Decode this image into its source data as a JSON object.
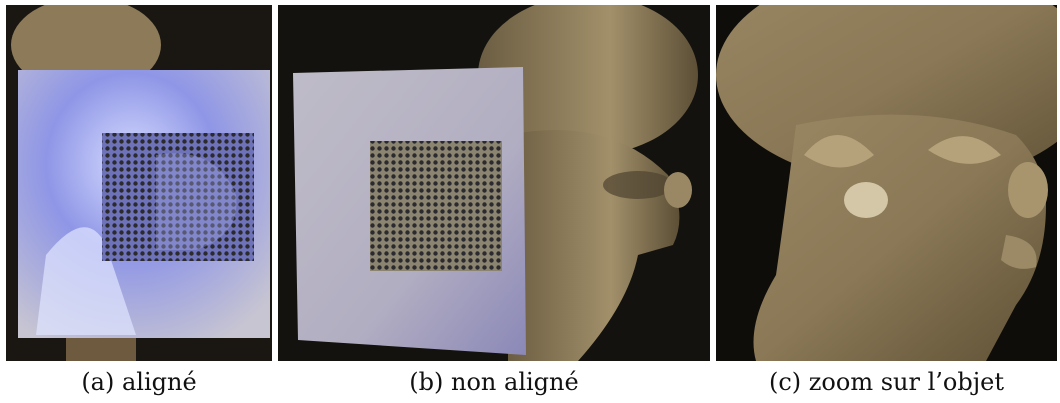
{
  "panels": [
    {
      "id": "a",
      "caption": "(a) aligné",
      "subject": "stone-head-sculpture-with-aligned-perforated-sheet"
    },
    {
      "id": "b",
      "caption": "(b) non aligné",
      "subject": "stone-head-sculpture-with-misaligned-perforated-sheet"
    },
    {
      "id": "c",
      "caption": "(c) zoom sur l’objet",
      "subject": "stone-head-sculpture-close-up"
    }
  ],
  "colors": {
    "background": "#101010",
    "stone": "#8f7e5c",
    "stone_dark": "#5e5138",
    "sheet": "#c9c7d6",
    "sheet_glow": "#8a8ee8",
    "holes": "#2b2a2e"
  }
}
